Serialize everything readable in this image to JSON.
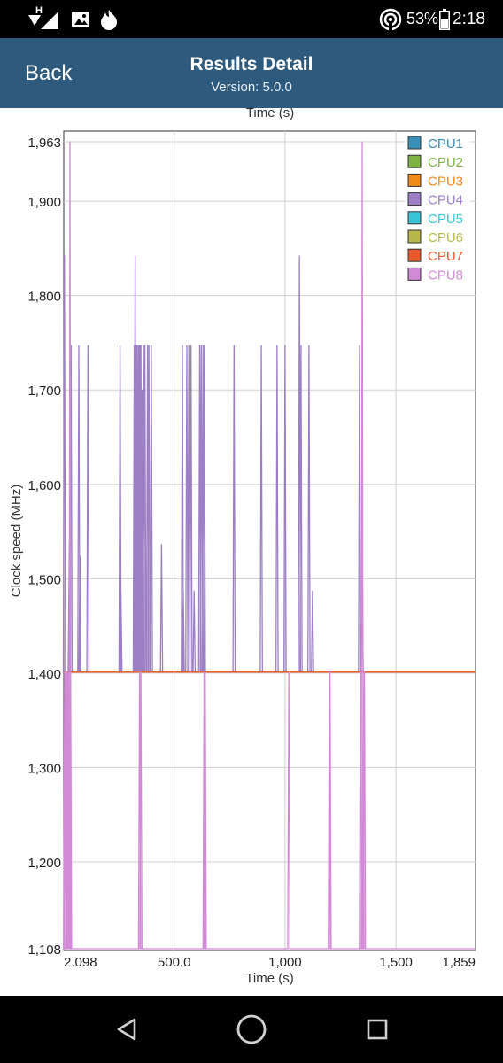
{
  "status_bar": {
    "network_label": "H",
    "battery_percent": "53%",
    "time": "2:18"
  },
  "app_bar": {
    "back_label": "Back",
    "title": "Results Detail",
    "subtitle": "Version: 5.0.0"
  },
  "icons": {
    "wifi": "wifi-icon",
    "signal": "signal-icon",
    "image": "image-icon",
    "fire": "fire-icon",
    "hotspot": "hotspot-icon",
    "battery": "battery-icon",
    "nav_back": "nav-back-icon",
    "nav_home": "nav-home-icon",
    "nav_recents": "nav-recents-icon"
  },
  "chart_data": {
    "type": "line",
    "top_label": "Time (s)",
    "xlabel": "Time (s)",
    "ylabel": "Clock speed (MHz)",
    "xlim": [
      2.098,
      1859
    ],
    "ylim": [
      1108,
      1963
    ],
    "x_ticks": [
      {
        "value": 2.098,
        "label": "2.098"
      },
      {
        "value": 500,
        "label": "500.0"
      },
      {
        "value": 1000,
        "label": "1,000"
      },
      {
        "value": 1500,
        "label": "1,500"
      },
      {
        "value": 1859,
        "label": "1,859"
      }
    ],
    "y_ticks": [
      {
        "value": 1963,
        "label": "1,963"
      },
      {
        "value": 1900,
        "label": "1,900"
      },
      {
        "value": 1800,
        "label": "1,800"
      },
      {
        "value": 1700,
        "label": "1,700"
      },
      {
        "value": 1600,
        "label": "1,600"
      },
      {
        "value": 1500,
        "label": "1,500"
      },
      {
        "value": 1400,
        "label": "1,400"
      },
      {
        "value": 1300,
        "label": "1,300"
      },
      {
        "value": 1200,
        "label": "1,200"
      },
      {
        "value": 1108,
        "label": "1,108"
      }
    ],
    "grid": true,
    "legend_position": "top-right",
    "series": [
      {
        "name": "CPU1",
        "color": "#3a8fb7",
        "baseline": 1401,
        "spikes": []
      },
      {
        "name": "CPU2",
        "color": "#7cb342",
        "baseline": 1401,
        "spikes": []
      },
      {
        "name": "CPU3",
        "color": "#ef8a17",
        "baseline": 1401,
        "spikes": []
      },
      {
        "name": "CPU4",
        "color": "#9c7fc4",
        "baseline": 1401,
        "spikes": [
          {
            "x": 5,
            "y": 1842
          },
          {
            "x": 27,
            "y": 1536
          },
          {
            "x": 35,
            "y": 1747
          },
          {
            "x": 70,
            "y": 1747
          },
          {
            "x": 75,
            "y": 1524
          },
          {
            "x": 111,
            "y": 1747
          },
          {
            "x": 256,
            "y": 1747
          },
          {
            "x": 260,
            "y": 1487
          },
          {
            "x": 320,
            "y": 1747
          },
          {
            "x": 324,
            "y": 1842
          },
          {
            "x": 329,
            "y": 1747
          },
          {
            "x": 334,
            "y": 1747
          },
          {
            "x": 340,
            "y": 1747
          },
          {
            "x": 345,
            "y": 1747
          },
          {
            "x": 350,
            "y": 1747
          },
          {
            "x": 355,
            "y": 1700
          },
          {
            "x": 362,
            "y": 1747
          },
          {
            "x": 368,
            "y": 1747
          },
          {
            "x": 380,
            "y": 1747
          },
          {
            "x": 386,
            "y": 1747
          },
          {
            "x": 397,
            "y": 1747
          },
          {
            "x": 443,
            "y": 1536
          },
          {
            "x": 537,
            "y": 1747
          },
          {
            "x": 541,
            "y": 1487
          },
          {
            "x": 557,
            "y": 1747
          },
          {
            "x": 566,
            "y": 1747
          },
          {
            "x": 576,
            "y": 1747
          },
          {
            "x": 590,
            "y": 1487
          },
          {
            "x": 615,
            "y": 1747
          },
          {
            "x": 622,
            "y": 1747
          },
          {
            "x": 630,
            "y": 1747
          },
          {
            "x": 636,
            "y": 1747
          },
          {
            "x": 770,
            "y": 1747
          },
          {
            "x": 893,
            "y": 1747
          },
          {
            "x": 964,
            "y": 1747
          },
          {
            "x": 1000,
            "y": 1747
          },
          {
            "x": 1065,
            "y": 1842
          },
          {
            "x": 1072,
            "y": 1747
          },
          {
            "x": 1108,
            "y": 1747
          },
          {
            "x": 1124,
            "y": 1487
          },
          {
            "x": 1336,
            "y": 1747
          },
          {
            "x": 1348,
            "y": 1487
          }
        ]
      },
      {
        "name": "CPU5",
        "color": "#3ac6d8",
        "baseline": 1401,
        "spikes": []
      },
      {
        "name": "CPU6",
        "color": "#b8b84a",
        "baseline": 1401,
        "spikes": []
      },
      {
        "name": "CPU7",
        "color": "#e8592c",
        "baseline": 1401,
        "spikes": []
      },
      {
        "name": "CPU8",
        "color": "#d28ad6",
        "baseline": 1108,
        "spikes": [
          {
            "x": 6,
            "y": 1401
          },
          {
            "x": 8,
            "y": 1401
          },
          {
            "x": 14,
            "y": 1401
          },
          {
            "x": 17,
            "y": 1401
          },
          {
            "x": 20,
            "y": 1401
          },
          {
            "x": 24,
            "y": 1401
          },
          {
            "x": 27,
            "y": 1401
          },
          {
            "x": 30,
            "y": 1963
          },
          {
            "x": 33,
            "y": 1401
          },
          {
            "x": 344,
            "y": 1401
          },
          {
            "x": 350,
            "y": 1401
          },
          {
            "x": 635,
            "y": 1401
          },
          {
            "x": 640,
            "y": 1401
          },
          {
            "x": 1017,
            "y": 1401
          },
          {
            "x": 1200,
            "y": 1401
          },
          {
            "x": 1203,
            "y": 1401
          },
          {
            "x": 1340,
            "y": 1401
          },
          {
            "x": 1348,
            "y": 1963
          },
          {
            "x": 1352,
            "y": 1401
          },
          {
            "x": 1358,
            "y": 1401
          }
        ]
      }
    ]
  }
}
